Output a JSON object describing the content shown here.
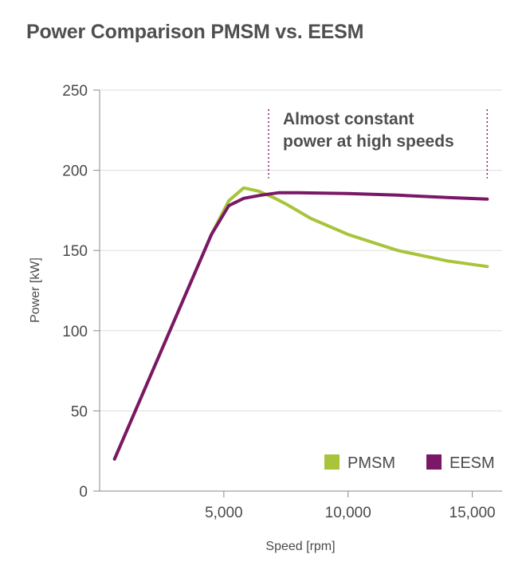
{
  "chart_data": {
    "type": "line",
    "title": "Power Comparison PMSM vs. EESM",
    "xlabel": "Speed [rpm]",
    "ylabel": "Power [kW]",
    "xlim": [
      0,
      16200
    ],
    "ylim": [
      0,
      250
    ],
    "x_ticks": [
      5000,
      10000,
      15000
    ],
    "x_tick_labels": [
      "5,000",
      "10,000",
      "15,000"
    ],
    "y_ticks": [
      0,
      50,
      100,
      150,
      200,
      250
    ],
    "y_tick_labels": [
      "0",
      "50",
      "100",
      "150",
      "200",
      "250"
    ],
    "grid": "horizontal",
    "legend_position": "bottom-right",
    "series": [
      {
        "name": "PMSM",
        "color": "#a8c43a",
        "points": [
          [
            600,
            20
          ],
          [
            4500,
            160
          ],
          [
            5200,
            181
          ],
          [
            5800,
            189
          ],
          [
            6400,
            187
          ],
          [
            7000,
            183
          ],
          [
            7500,
            179
          ],
          [
            8500,
            170
          ],
          [
            10000,
            160
          ],
          [
            12000,
            150
          ],
          [
            14000,
            143.5
          ],
          [
            15600,
            140
          ]
        ]
      },
      {
        "name": "EESM",
        "color": "#7a1767",
        "points": [
          [
            600,
            20
          ],
          [
            4500,
            160
          ],
          [
            5200,
            178
          ],
          [
            5800,
            182.5
          ],
          [
            6500,
            184.5
          ],
          [
            7200,
            186
          ],
          [
            8000,
            186
          ],
          [
            10000,
            185.5
          ],
          [
            12000,
            184.5
          ],
          [
            14000,
            183
          ],
          [
            15600,
            182
          ]
        ]
      }
    ],
    "annotation": {
      "lines": [
        "Almost constant",
        "power at high speeds"
      ],
      "x_start": 6800,
      "x_end": 15600,
      "y_top": 238,
      "y_bottom": 195,
      "marker_color": "#7a1767"
    }
  }
}
